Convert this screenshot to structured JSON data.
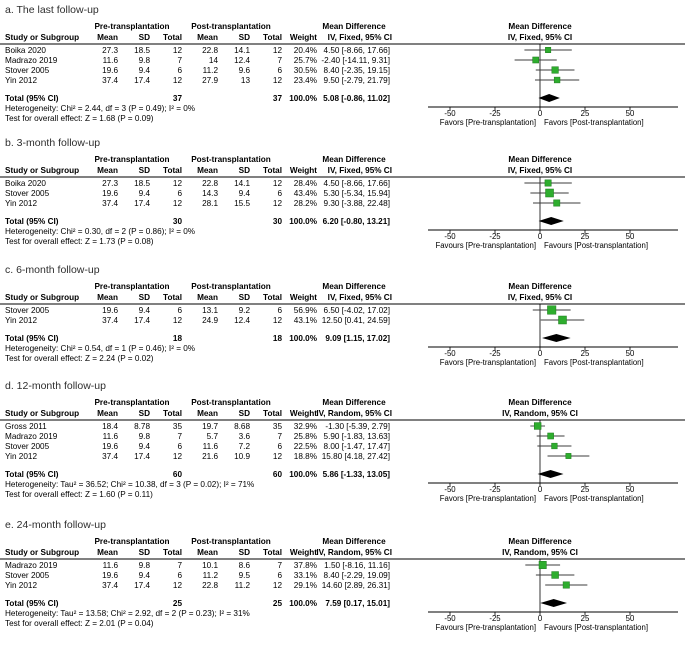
{
  "colors": {
    "square": "#2ead2e",
    "square_border": "#1d7a1d",
    "diamond": "#000000",
    "whisker": "#3c3c3c",
    "line": "#000000",
    "text": "#000000"
  },
  "chart_data": [
    {
      "type": "forest",
      "title": "a. The last follow-up",
      "headers": {
        "study": "Study or Subgroup",
        "pre_group": "Pre-transplantation",
        "post_group": "Post-transplantation",
        "md_group": "Mean Difference",
        "mean": "Mean",
        "sd": "SD",
        "total": "Total",
        "weight": "Weight",
        "model": "IV, Fixed, 95% CI"
      },
      "studies": [
        {
          "name": "Boika 2020",
          "pre_mean": "27.3",
          "pre_sd": "18.5",
          "pre_total": "12",
          "post_mean": "22.8",
          "post_sd": "14.1",
          "post_total": "12",
          "weight": "20.4%",
          "weight_value": 20.4,
          "ci_label": "4.50 [-8.66, 17.66]",
          "est": 4.5,
          "lo": -8.66,
          "hi": 17.66
        },
        {
          "name": "Madrazo 2019",
          "pre_mean": "11.6",
          "pre_sd": "9.8",
          "pre_total": "7",
          "post_mean": "14",
          "post_sd": "12.4",
          "post_total": "7",
          "weight": "25.7%",
          "weight_value": 25.7,
          "ci_label": "-2.40 [-14.11, 9.31]",
          "est": -2.4,
          "lo": -14.11,
          "hi": 9.31
        },
        {
          "name": "Stover 2005",
          "pre_mean": "19.6",
          "pre_sd": "9.4",
          "pre_total": "6",
          "post_mean": "11.2",
          "post_sd": "9.6",
          "post_total": "6",
          "weight": "30.5%",
          "weight_value": 30.5,
          "ci_label": "8.40 [-2.35, 19.15]",
          "est": 8.4,
          "lo": -2.35,
          "hi": 19.15
        },
        {
          "name": "Yin 2012",
          "pre_mean": "37.4",
          "pre_sd": "17.4",
          "pre_total": "12",
          "post_mean": "27.9",
          "post_sd": "13",
          "post_total": "12",
          "weight": "23.4%",
          "weight_value": 23.4,
          "ci_label": "9.50 [-2.79, 21.79]",
          "est": 9.5,
          "lo": -2.79,
          "hi": 21.79
        }
      ],
      "total": {
        "label": "Total (95% CI)",
        "pre_total": "37",
        "post_total": "37",
        "weight": "100.0%",
        "ci_label": "5.08 [-0.86, 11.02]",
        "est": 5.08,
        "lo": -0.86,
        "hi": 11.02
      },
      "heterogeneity": "Heterogeneity: Chi² = 2.44, df = 3 (P = 0.49); I² = 0%",
      "overall_effect": "Test for overall effect: Z = 1.68 (P = 0.09)",
      "axis": {
        "ticks": [
          -50,
          -25,
          0,
          25,
          50
        ],
        "min": -62,
        "max": 77
      },
      "favors_left": "Favors [Pre-transplantation]",
      "favors_right": "Favors [Post-transplantation]"
    },
    {
      "type": "forest",
      "title": "b. 3-month follow-up",
      "headers": {
        "study": "Study or Subgroup",
        "pre_group": "Pre-transplantation",
        "post_group": "Post-transplantation",
        "md_group": "Mean Difference",
        "mean": "Mean",
        "sd": "SD",
        "total": "Total",
        "weight": "Weight",
        "model": "IV, Fixed, 95% CI"
      },
      "studies": [
        {
          "name": "Boika 2020",
          "pre_mean": "27.3",
          "pre_sd": "18.5",
          "pre_total": "12",
          "post_mean": "22.8",
          "post_sd": "14.1",
          "post_total": "12",
          "weight": "28.4%",
          "weight_value": 28.4,
          "ci_label": "4.50 [-8.66, 17.66]",
          "est": 4.5,
          "lo": -8.66,
          "hi": 17.66
        },
        {
          "name": "Stover 2005",
          "pre_mean": "19.6",
          "pre_sd": "9.4",
          "pre_total": "6",
          "post_mean": "14.3",
          "post_sd": "9.4",
          "post_total": "6",
          "weight": "43.4%",
          "weight_value": 43.4,
          "ci_label": "5.30 [-5.34, 15.94]",
          "est": 5.3,
          "lo": -5.34,
          "hi": 15.94
        },
        {
          "name": "Yin 2012",
          "pre_mean": "37.4",
          "pre_sd": "17.4",
          "pre_total": "12",
          "post_mean": "28.1",
          "post_sd": "15.5",
          "post_total": "12",
          "weight": "28.2%",
          "weight_value": 28.2,
          "ci_label": "9.30 [-3.88, 22.48]",
          "est": 9.3,
          "lo": -3.88,
          "hi": 22.48
        }
      ],
      "total": {
        "label": "Total (95% CI)",
        "pre_total": "30",
        "post_total": "30",
        "weight": "100.0%",
        "ci_label": "6.20 [-0.80, 13.21]",
        "est": 6.2,
        "lo": -0.8,
        "hi": 13.21
      },
      "heterogeneity": "Heterogeneity: Chi² = 0.30, df = 2 (P = 0.86); I² = 0%",
      "overall_effect": "Test for overall effect: Z = 1.73 (P = 0.08)",
      "axis": {
        "ticks": [
          -50,
          -25,
          0,
          25,
          50
        ],
        "min": -62,
        "max": 77
      },
      "favors_left": "Favours [Pre-transplantation]",
      "favors_right": "Favours [Post-transplantation]"
    },
    {
      "type": "forest",
      "title": "c. 6-month follow-up",
      "headers": {
        "study": "Study or Subgroup",
        "pre_group": "Pre-transplantation",
        "post_group": "Post-transplantation",
        "md_group": "Mean Difference",
        "mean": "Mean",
        "sd": "SD",
        "total": "Total",
        "weight": "Weight",
        "model": "IV, Fixed, 95% CI"
      },
      "studies": [
        {
          "name": "Stover 2005",
          "pre_mean": "19.6",
          "pre_sd": "9.4",
          "pre_total": "6",
          "post_mean": "13.1",
          "post_sd": "9.2",
          "post_total": "6",
          "weight": "56.9%",
          "weight_value": 56.9,
          "ci_label": "6.50 [-4.02, 17.02]",
          "est": 6.5,
          "lo": -4.02,
          "hi": 17.02
        },
        {
          "name": "Yin 2012",
          "pre_mean": "37.4",
          "pre_sd": "17.4",
          "pre_total": "12",
          "post_mean": "24.9",
          "post_sd": "12.4",
          "post_total": "12",
          "weight": "43.1%",
          "weight_value": 43.1,
          "ci_label": "12.50 [0.41, 24.59]",
          "est": 12.5,
          "lo": 0.41,
          "hi": 24.59
        }
      ],
      "total": {
        "label": "Total (95% CI)",
        "pre_total": "18",
        "post_total": "18",
        "weight": "100.0%",
        "ci_label": "9.09 [1.15, 17.02]",
        "est": 9.09,
        "lo": 1.15,
        "hi": 17.02
      },
      "heterogeneity": "Heterogeneity: Chi² = 0.54, df = 1 (P = 0.46); I² = 0%",
      "overall_effect": "Test for overall effect: Z = 2.24 (P = 0.02)",
      "axis": {
        "ticks": [
          -50,
          -25,
          0,
          25,
          50
        ],
        "min": -62,
        "max": 77
      },
      "favors_left": "Favors [Pre-transplantation]",
      "favors_right": "Favors [Post-transplantation]"
    },
    {
      "type": "forest",
      "title": "d. 12-month follow-up",
      "headers": {
        "study": "Study or Subgroup",
        "pre_group": "Pre-transplantation",
        "post_group": "Post-transplantation",
        "md_group": "Mean Difference",
        "mean": "Mean",
        "sd": "SD",
        "total": "Total",
        "weight": "Weight",
        "model": "IV, Random, 95% CI"
      },
      "studies": [
        {
          "name": "Gross 2011",
          "pre_mean": "18.4",
          "pre_sd": "8.78",
          "pre_total": "35",
          "post_mean": "19.7",
          "post_sd": "8.68",
          "post_total": "35",
          "weight": "32.9%",
          "weight_value": 32.9,
          "ci_label": "-1.30 [-5.39, 2.79]",
          "est": -1.3,
          "lo": -5.39,
          "hi": 2.79
        },
        {
          "name": "Madrazo 2019",
          "pre_mean": "11.6",
          "pre_sd": "9.8",
          "pre_total": "7",
          "post_mean": "5.7",
          "post_sd": "3.6",
          "post_total": "7",
          "weight": "25.8%",
          "weight_value": 25.8,
          "ci_label": "5.90 [-1.83, 13.63]",
          "est": 5.9,
          "lo": -1.83,
          "hi": 13.63
        },
        {
          "name": "Stover 2005",
          "pre_mean": "19.6",
          "pre_sd": "9.4",
          "pre_total": "6",
          "post_mean": "11.6",
          "post_sd": "7.2",
          "post_total": "6",
          "weight": "22.5%",
          "weight_value": 22.5,
          "ci_label": "8.00 [-1.47, 17.47]",
          "est": 8.0,
          "lo": -1.47,
          "hi": 17.47
        },
        {
          "name": "Yin 2012",
          "pre_mean": "37.4",
          "pre_sd": "17.4",
          "pre_total": "12",
          "post_mean": "21.6",
          "post_sd": "10.9",
          "post_total": "12",
          "weight": "18.8%",
          "weight_value": 18.8,
          "ci_label": "15.80 [4.18, 27.42]",
          "est": 15.8,
          "lo": 4.18,
          "hi": 27.42
        }
      ],
      "total": {
        "label": "Total (95% CI)",
        "pre_total": "60",
        "post_total": "60",
        "weight": "100.0%",
        "ci_label": "5.86 [-1.33, 13.05]",
        "est": 5.86,
        "lo": -1.33,
        "hi": 13.05
      },
      "heterogeneity": "Heterogeneity: Tau² = 36.52; Chi² = 10.38, df = 3 (P = 0.02); I² = 71%",
      "overall_effect": "Test for overall effect: Z = 1.60 (P = 0.11)",
      "axis": {
        "ticks": [
          -50,
          -25,
          0,
          25,
          50
        ],
        "min": -62,
        "max": 77
      },
      "favors_left": "Favors [Pre-transplantation]",
      "favors_right": "Favors [Post-transplantation]"
    },
    {
      "type": "forest",
      "title": "e. 24-month follow-up",
      "headers": {
        "study": "Study or Subgroup",
        "pre_group": "Pre-transplantation",
        "post_group": "Post-transplantation",
        "md_group": "Mean Difference",
        "mean": "Mean",
        "sd": "SD",
        "total": "Total",
        "weight": "Weight",
        "model": "IV, Random, 95% CI"
      },
      "studies": [
        {
          "name": "Madrazo 2019",
          "pre_mean": "11.6",
          "pre_sd": "9.8",
          "pre_total": "7",
          "post_mean": "10.1",
          "post_sd": "8.6",
          "post_total": "7",
          "weight": "37.8%",
          "weight_value": 37.8,
          "ci_label": "1.50 [-8.16, 11.16]",
          "est": 1.5,
          "lo": -8.16,
          "hi": 11.16
        },
        {
          "name": "Stover 2005",
          "pre_mean": "19.6",
          "pre_sd": "9.4",
          "pre_total": "6",
          "post_mean": "11.2",
          "post_sd": "9.5",
          "post_total": "6",
          "weight": "33.1%",
          "weight_value": 33.1,
          "ci_label": "8.40 [-2.29, 19.09]",
          "est": 8.4,
          "lo": -2.29,
          "hi": 19.09
        },
        {
          "name": "Yin 2012",
          "pre_mean": "37.4",
          "pre_sd": "17.4",
          "pre_total": "12",
          "post_mean": "22.8",
          "post_sd": "11.2",
          "post_total": "12",
          "weight": "29.1%",
          "weight_value": 29.1,
          "ci_label": "14.60 [2.89, 26.31]",
          "est": 14.6,
          "lo": 2.89,
          "hi": 26.31
        }
      ],
      "total": {
        "label": "Total (95% CI)",
        "pre_total": "25",
        "post_total": "25",
        "weight": "100.0%",
        "ci_label": "7.59 [0.17, 15.01]",
        "est": 7.59,
        "lo": 0.17,
        "hi": 15.01
      },
      "heterogeneity": "Heterogeneity: Tau² = 13.58; Chi² = 2.92, df = 2 (P = 0.23); I² = 31%",
      "overall_effect": "Test for overall effect: Z = 2.01 (P = 0.04)",
      "axis": {
        "ticks": [
          -50,
          -25,
          0,
          25,
          50
        ],
        "min": -62,
        "max": 77
      },
      "favors_left": "Favours [Pre-transplantation]",
      "favors_right": "Favours [Post-transplantation]"
    }
  ]
}
